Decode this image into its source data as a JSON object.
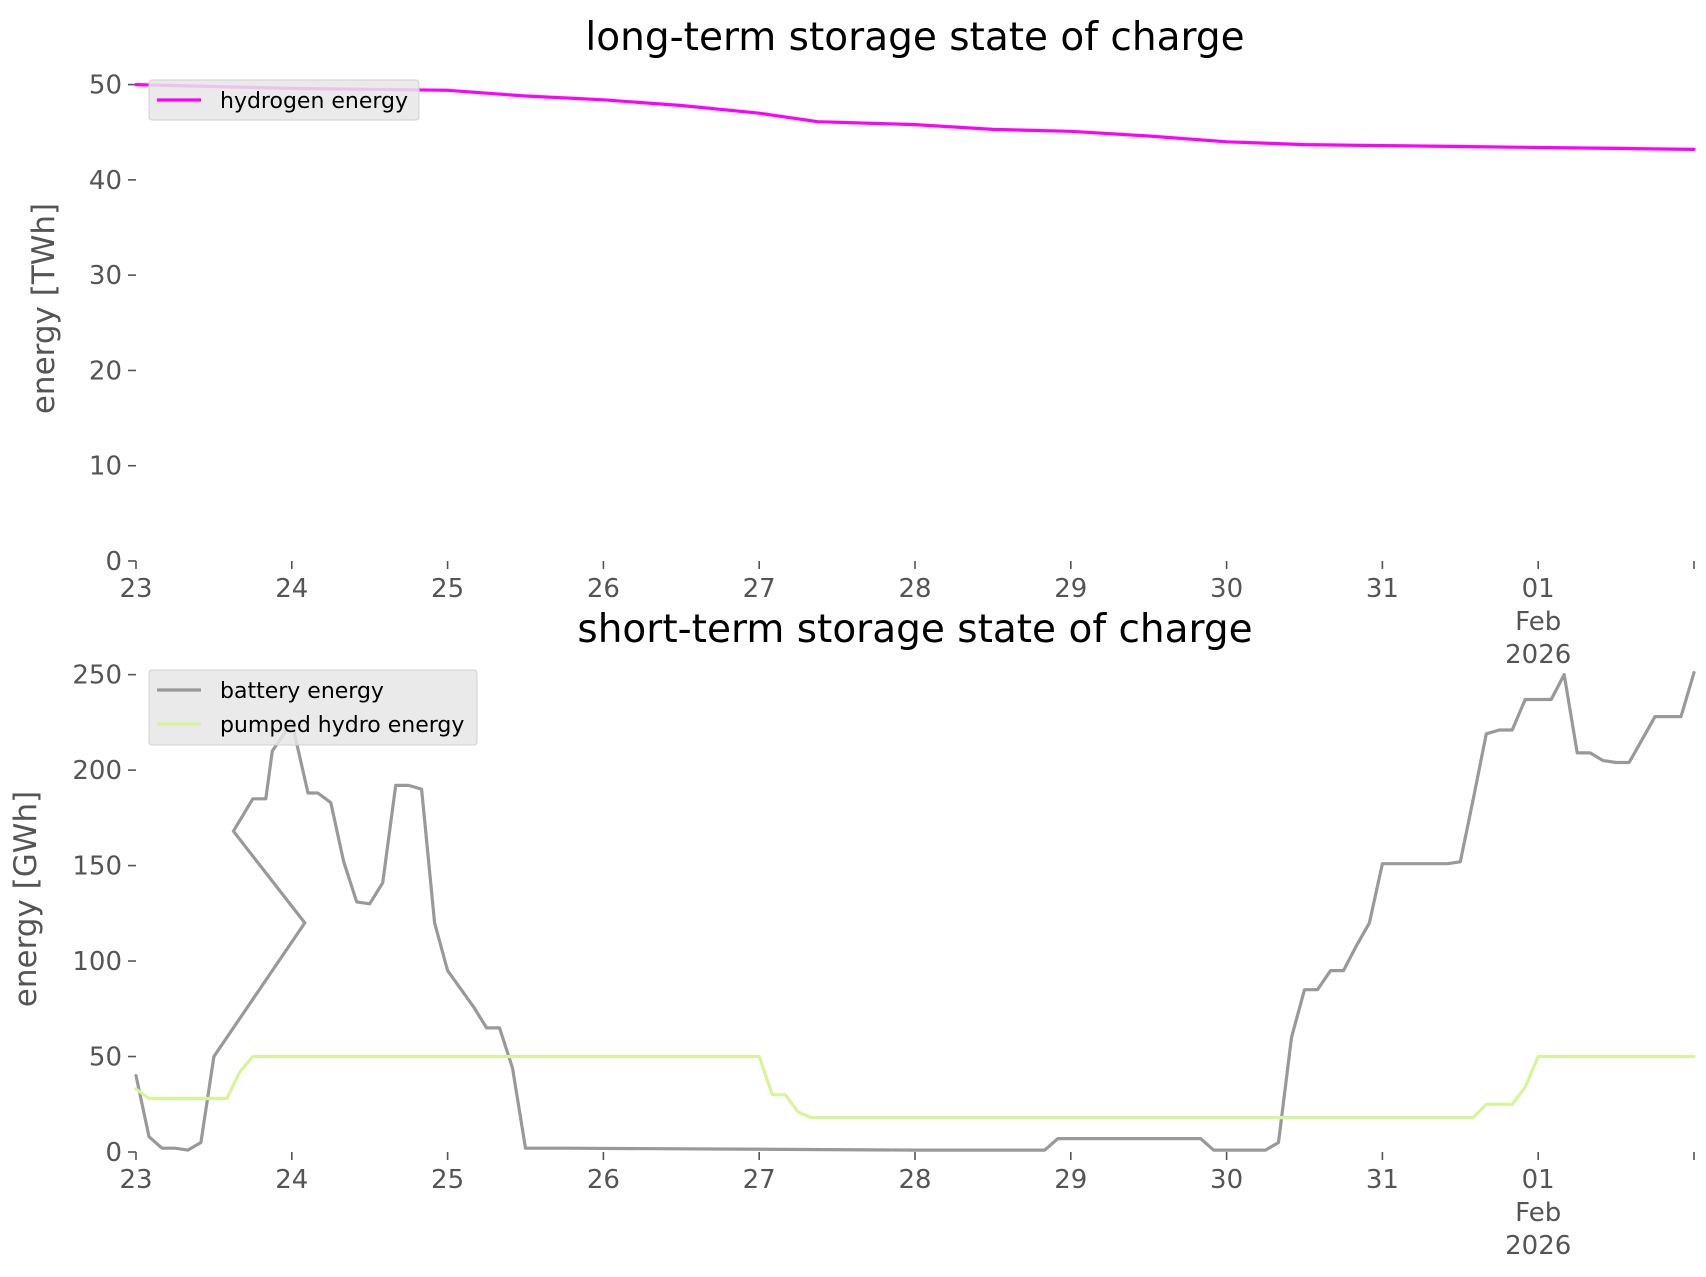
{
  "chart_data": [
    {
      "type": "line",
      "title": "long-term storage state of charge",
      "ylabel": "energy [TWh]",
      "xlabel": "",
      "ylim": [
        0,
        53
      ],
      "yticks": [
        0,
        10,
        20,
        30,
        40,
        50
      ],
      "xlim": [
        "2026-01-23 00:00",
        "2026-02-01 24:00"
      ],
      "xticks": [
        {
          "label": "23",
          "date": "2026-01-23"
        },
        {
          "label": "24",
          "date": "2026-01-24"
        },
        {
          "label": "25",
          "date": "2026-01-25"
        },
        {
          "label": "26",
          "date": "2026-01-26"
        },
        {
          "label": "27",
          "date": "2026-01-27"
        },
        {
          "label": "28",
          "date": "2026-01-28"
        },
        {
          "label": "29",
          "date": "2026-01-29"
        },
        {
          "label": "30",
          "date": "2026-01-30"
        },
        {
          "label": "31",
          "date": "2026-01-31"
        },
        {
          "label": "01",
          "sub": [
            "Feb",
            "2026"
          ],
          "date": "2026-02-01"
        }
      ],
      "grid": false,
      "legend_position": "upper-left",
      "series": [
        {
          "name": "hydrogen energy",
          "color": "#ff00ff",
          "x": [
            "2026-01-23 00:00",
            "2026-01-24 00:00",
            "2026-01-24 12:00",
            "2026-01-25 00:00",
            "2026-01-25 12:00",
            "2026-01-26 00:00",
            "2026-01-26 12:00",
            "2026-01-27 00:00",
            "2026-01-27 09:00",
            "2026-01-28 00:00",
            "2026-01-28 12:00",
            "2026-01-29 00:00",
            "2026-01-29 12:00",
            "2026-01-30 00:00",
            "2026-01-30 12:00",
            "2026-01-31 00:00",
            "2026-01-31 12:00",
            "2026-02-01 00:00",
            "2026-02-01 12:00",
            "2026-02-01 24:00"
          ],
          "y": [
            50.0,
            49.6,
            49.5,
            49.4,
            48.8,
            48.4,
            47.8,
            47.0,
            46.1,
            45.8,
            45.3,
            45.1,
            44.6,
            44.0,
            43.7,
            43.6,
            43.5,
            43.4,
            43.3,
            43.2
          ]
        }
      ]
    },
    {
      "type": "line",
      "title": "short-term storage state of charge",
      "ylabel": "energy [GWh]",
      "xlabel": "",
      "ylim": [
        0,
        265
      ],
      "yticks": [
        0,
        50,
        100,
        150,
        200,
        250
      ],
      "xlim": [
        "2026-01-23 00:00",
        "2026-02-01 24:00"
      ],
      "xticks": [
        {
          "label": "23",
          "date": "2026-01-23"
        },
        {
          "label": "24",
          "date": "2026-01-24"
        },
        {
          "label": "25",
          "date": "2026-01-25"
        },
        {
          "label": "26",
          "date": "2026-01-26"
        },
        {
          "label": "27",
          "date": "2026-01-27"
        },
        {
          "label": "28",
          "date": "2026-01-28"
        },
        {
          "label": "29",
          "date": "2026-01-29"
        },
        {
          "label": "30",
          "date": "2026-01-30"
        },
        {
          "label": "31",
          "date": "2026-01-31"
        },
        {
          "label": "01",
          "sub": [
            "Feb",
            "2026"
          ],
          "date": "2026-02-01"
        }
      ],
      "grid": false,
      "legend_position": "upper-left",
      "series": [
        {
          "name": "battery energy",
          "color": "#999999",
          "x": [
            "2026-01-23 00:00",
            "2026-01-23 02:00",
            "2026-01-23 04:00",
            "2026-01-23 06:00",
            "2026-01-23 08:00",
            "2026-01-23 10:00",
            "2026-01-23 12:00",
            "2026-01-24 02:00",
            "2026-01-23 15:00",
            "2026-01-23 18:00",
            "2026-01-23 20:00",
            "2026-01-23 21:00",
            "2026-01-24 00:00",
            "2026-01-24 00:01",
            "2026-01-24 02:30",
            "2026-01-24 04:00",
            "2026-01-24 06:00",
            "2026-01-24 08:00",
            "2026-01-24 10:00",
            "2026-01-24 12:00",
            "2026-01-24 14:00",
            "2026-01-24 16:00",
            "2026-01-24 18:00",
            "2026-01-24 20:00",
            "2026-01-24 22:00",
            "2026-01-25 00:00",
            "2026-01-25 04:00",
            "2026-01-25 06:00",
            "2026-01-25 08:00",
            "2026-01-25 10:00",
            "2026-01-25 12:00",
            "2026-01-25 16:00",
            "2026-01-25 18:00",
            "2026-01-28 00:00",
            "2026-01-28 20:00",
            "2026-01-28 22:00",
            "2026-01-29 18:00",
            "2026-01-29 20:00",
            "2026-01-29 22:00",
            "2026-01-30 00:00",
            "2026-01-30 06:00",
            "2026-01-30 08:00",
            "2026-01-30 10:00",
            "2026-01-30 12:00",
            "2026-01-30 14:00",
            "2026-01-30 16:00",
            "2026-01-30 18:00",
            "2026-01-30 20:00",
            "2026-01-30 22:00",
            "2026-01-31 00:00",
            "2026-01-31 02:00",
            "2026-01-31 04:00",
            "2026-01-31 06:00",
            "2026-01-31 08:00",
            "2026-01-31 10:00",
            "2026-01-31 12:00",
            "2026-01-31 14:00",
            "2026-01-31 16:00",
            "2026-01-31 18:00",
            "2026-01-31 20:00",
            "2026-01-31 22:00",
            "2026-02-01 00:00",
            "2026-02-01 02:00",
            "2026-02-01 04:00",
            "2026-02-01 06:00",
            "2026-02-01 08:00",
            "2026-02-01 10:00",
            "2026-02-01 12:00",
            "2026-02-01 14:00",
            "2026-02-01 16:00",
            "2026-02-01 18:00",
            "2026-02-01 20:00",
            "2026-02-01 22:00",
            "2026-02-01 24:00"
          ],
          "y": [
            40,
            8,
            2,
            2,
            1,
            5,
            50,
            120,
            168,
            185,
            185,
            210,
            225,
            225,
            188,
            188,
            183,
            152,
            131,
            130,
            141,
            192,
            192,
            190,
            120,
            95,
            76,
            65,
            65,
            44,
            2,
            2,
            2,
            1,
            1,
            7,
            7,
            7,
            1,
            1,
            1,
            5,
            60,
            85,
            85,
            95,
            95,
            108,
            120,
            151,
            151,
            151,
            151,
            151,
            151,
            152,
            185,
            219,
            221,
            221,
            237,
            237,
            237,
            250,
            209,
            209,
            205,
            204,
            204,
            216,
            228,
            228,
            228,
            251
          ]
        },
        {
          "name": "pumped hydro energy",
          "color": "#d7f49a",
          "x": [
            "2026-01-23 00:00",
            "2026-01-23 02:00",
            "2026-01-23 14:00",
            "2026-01-23 16:00",
            "2026-01-23 18:00",
            "2026-01-27 00:00",
            "2026-01-27 02:00",
            "2026-01-27 04:00",
            "2026-01-27 06:00",
            "2026-01-27 08:00",
            "2026-01-31 14:00",
            "2026-01-31 16:00",
            "2026-01-31 20:00",
            "2026-01-31 22:00",
            "2026-02-01 00:00",
            "2026-02-01 24:00"
          ],
          "y": [
            33,
            28,
            28,
            42,
            50,
            50,
            30,
            30,
            21,
            18,
            18,
            25,
            25,
            34,
            50,
            50
          ]
        }
      ]
    }
  ]
}
